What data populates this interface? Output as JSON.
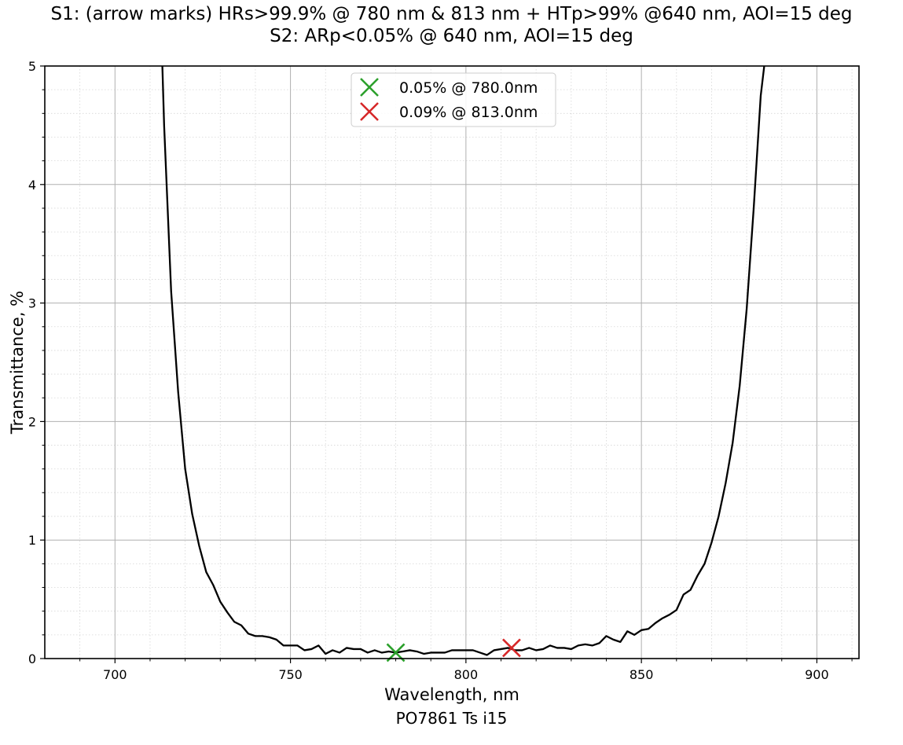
{
  "title_line1": "S1: (arrow marks) HRs>99.9% @ 780 nm & 813 nm + HTp>99% @640 nm, AOI=15 deg",
  "title_line2": "S2: ARp<0.05% @ 640 nm, AOI=15 deg",
  "caption": "PO7861 Ts i15",
  "chart_data": {
    "type": "line",
    "xlabel": "Wavelength, nm",
    "ylabel": "Transmittance, %",
    "xlim": [
      680,
      912
    ],
    "ylim": [
      0,
      5
    ],
    "xticks": [
      700,
      750,
      800,
      850,
      900
    ],
    "yticks": [
      0,
      1,
      2,
      3,
      4,
      5
    ],
    "grid": true,
    "minor_grid": true,
    "legend_position": "top-center",
    "line_color": "#000000",
    "series": [
      {
        "x": [
          713.5,
          714,
          716,
          718,
          720,
          722,
          724,
          726,
          728,
          730,
          732,
          734,
          736,
          738,
          740,
          742,
          744,
          746,
          748,
          750,
          752,
          754,
          756,
          758,
          760,
          762,
          764,
          766,
          768,
          770,
          772,
          774,
          776,
          778,
          780,
          782,
          784,
          786,
          788,
          790,
          792,
          794,
          796,
          798,
          800,
          802,
          804,
          806,
          808,
          810,
          812,
          814,
          816,
          818,
          820,
          822,
          824,
          826,
          828,
          830,
          832,
          834,
          836,
          838,
          840,
          842,
          844,
          846,
          848,
          850,
          852,
          854,
          856,
          858,
          860,
          862,
          864,
          866,
          868,
          870,
          872,
          874,
          876,
          878,
          880,
          882,
          884,
          885
        ],
        "y": [
          5.0,
          4.5,
          3.1,
          2.25,
          1.6,
          1.22,
          0.95,
          0.73,
          0.62,
          0.48,
          0.39,
          0.31,
          0.28,
          0.21,
          0.19,
          0.19,
          0.18,
          0.16,
          0.11,
          0.11,
          0.11,
          0.07,
          0.08,
          0.11,
          0.04,
          0.07,
          0.05,
          0.09,
          0.08,
          0.08,
          0.05,
          0.07,
          0.05,
          0.06,
          0.05,
          0.06,
          0.07,
          0.06,
          0.04,
          0.05,
          0.05,
          0.05,
          0.07,
          0.07,
          0.07,
          0.07,
          0.05,
          0.03,
          0.07,
          0.08,
          0.09,
          0.07,
          0.07,
          0.09,
          0.07,
          0.08,
          0.11,
          0.09,
          0.09,
          0.08,
          0.11,
          0.12,
          0.11,
          0.13,
          0.19,
          0.16,
          0.14,
          0.23,
          0.2,
          0.24,
          0.25,
          0.3,
          0.34,
          0.37,
          0.41,
          0.54,
          0.58,
          0.7,
          0.8,
          0.98,
          1.2,
          1.48,
          1.82,
          2.3,
          2.95,
          3.8,
          4.75,
          5.0
        ]
      }
    ],
    "markers": [
      {
        "x": 780.0,
        "y": 0.05,
        "label": "0.05% @ 780.0nm",
        "color": "#2ca02c",
        "symbol": "x"
      },
      {
        "x": 813.0,
        "y": 0.09,
        "label": "0.09% @ 813.0nm",
        "color": "#d62728",
        "symbol": "x"
      }
    ]
  }
}
